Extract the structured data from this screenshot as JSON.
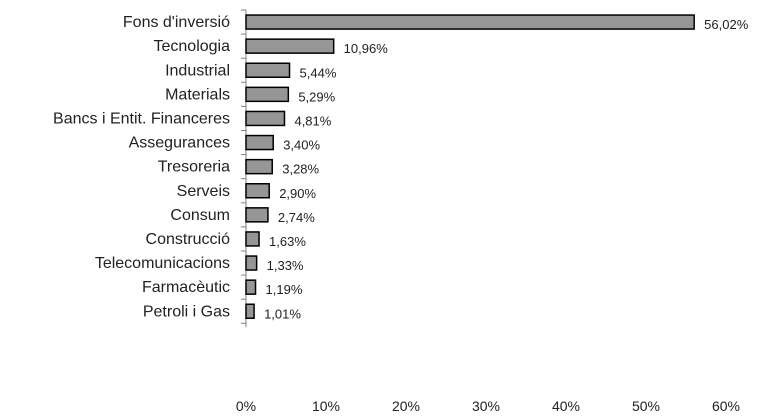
{
  "chart_data": {
    "type": "bar",
    "orientation": "horizontal",
    "categories": [
      "Fons d'inversió",
      "Tecnologia",
      "Industrial",
      "Materials",
      "Bancs i Entit. Financeres",
      "Assegurances",
      "Tresoreria",
      "Serveis",
      "Consum",
      "Construcció",
      "Telecomunicacions",
      "Farmacèutic",
      "Petroli i Gas"
    ],
    "values": [
      56.02,
      10.96,
      5.44,
      5.29,
      4.81,
      3.4,
      3.28,
      2.9,
      2.74,
      1.63,
      1.33,
      1.19,
      1.01
    ],
    "value_labels": [
      "56,02%",
      "10,96%",
      "5,44%",
      "5,29%",
      "4,81%",
      "3,40%",
      "3,28%",
      "2,90%",
      "2,74%",
      "1,63%",
      "1,33%",
      "1,19%",
      "1,01%"
    ],
    "x_ticks": [
      "0%",
      "10%",
      "20%",
      "30%",
      "40%",
      "50%",
      "60%"
    ],
    "xlim": [
      0,
      60
    ],
    "grid": false,
    "legend": "none",
    "colors": {
      "bar_fill": "#969696",
      "bar_stroke": "#000000",
      "axis": "#808080"
    },
    "title": "",
    "xlabel": "",
    "ylabel": ""
  }
}
